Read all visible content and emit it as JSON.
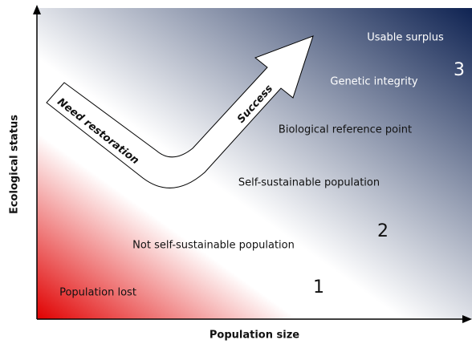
{
  "axes": {
    "x_label": "Population size",
    "y_label": "Ecological status"
  },
  "arrow": {
    "start_label": "Need restoration",
    "end_label": "Success"
  },
  "regions": [
    {
      "label": "Usable surplus"
    },
    {
      "label": "Genetic integrity"
    },
    {
      "label": "Biological reference point"
    },
    {
      "label": "Self-sustainable population"
    },
    {
      "label": "Not self-sustainable population"
    },
    {
      "label": "Population lost"
    }
  ],
  "zones": [
    "1",
    "2",
    "3"
  ]
}
